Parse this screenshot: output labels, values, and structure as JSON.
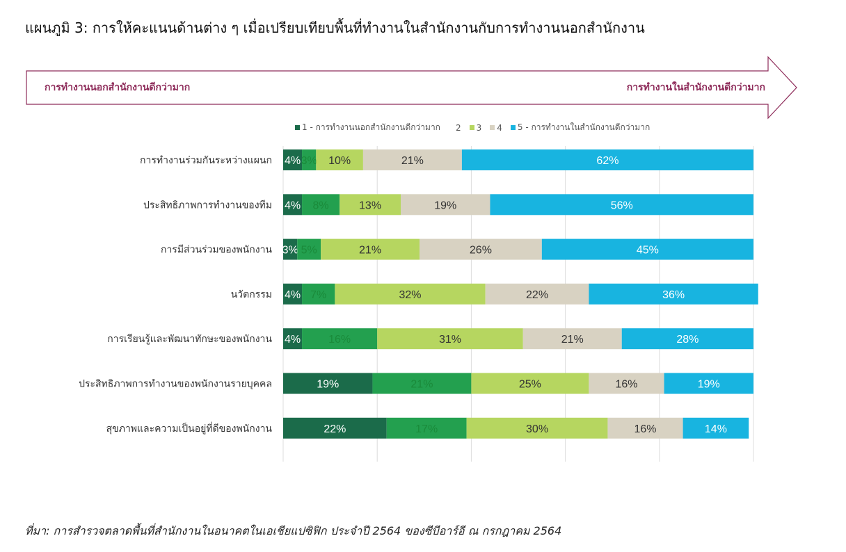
{
  "title": "แผนภูมิ 3: การให้คะแนนด้านต่าง ๆ เมื่อเปรียบเทียบพื้นที่ทำงานในสำนักงานกับการทำงานนอกสำนักงาน",
  "arrow": {
    "left_label": "การทำงานนอกสำนักงานดีกว่ามาก",
    "right_label": "การทำงานในสำนักงานดีกว่ามาก",
    "color": "#8e2c5a"
  },
  "source": "ที่มา: การสำรวจตลาดพื้นที่สำนักงานในอนาคตในเอเชียแปซิฟิก ประจำปี 2564 ของซีบีอาร์อี ณ กรกฎาคม 2564",
  "chart_data": {
    "type": "bar",
    "stacked": true,
    "orientation": "horizontal",
    "xlim": [
      0,
      100
    ],
    "unit": "%",
    "categories": [
      "การทำงานร่วมกันระหว่างแผนก",
      "ประสิทธิภาพการทำงานของทีม",
      "การมีส่วนร่วมของพนักงาน",
      "นวัตกรรม",
      "การเรียนรู้และพัฒนาทักษะของพนักงาน",
      "ประสิทธิภาพการทำงานของพนักงานรายบุคคล",
      "สุขภาพและความเป็นอยู่ที่ดีของพนักงาน"
    ],
    "series": [
      {
        "name": "1 - การทำงานนอกสำนักงานดีกว่ามาก",
        "color": "#1b6b4a",
        "label_color": "#ffffff",
        "values": [
          4,
          4,
          3,
          4,
          4,
          19,
          22
        ]
      },
      {
        "name": "2",
        "color": "#23a04f",
        "label_color": "#1a8a3a",
        "values": [
          3,
          8,
          5,
          7,
          16,
          21,
          17
        ]
      },
      {
        "name": "3",
        "color": "#b6d660",
        "label_color": "#333333",
        "values": [
          10,
          13,
          21,
          32,
          31,
          25,
          30
        ]
      },
      {
        "name": "4",
        "color": "#d8d2c2",
        "label_color": "#333333",
        "values": [
          21,
          19,
          26,
          22,
          21,
          16,
          16
        ]
      },
      {
        "name": "5 - การทำงานในสำนักงานดีกว่ามาก",
        "color": "#18b4e0",
        "label_color": "#ffffff",
        "values": [
          62,
          56,
          45,
          36,
          28,
          19,
          14
        ]
      }
    ],
    "legend_position": "top",
    "grid": true
  }
}
